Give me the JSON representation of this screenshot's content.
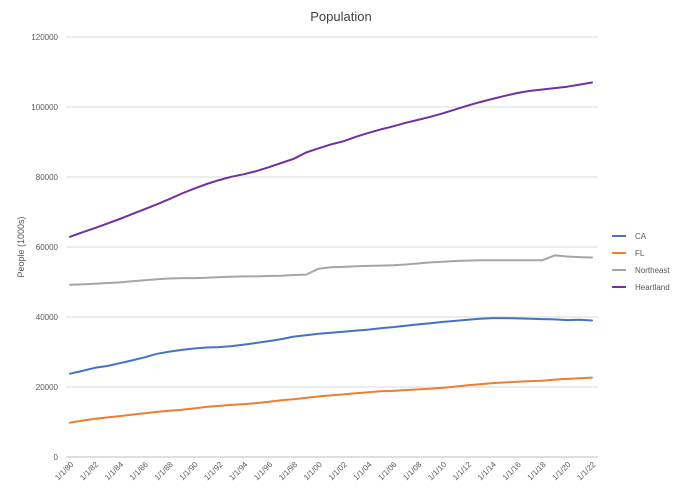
{
  "chart_data": {
    "type": "line",
    "title": "Population",
    "ylabel": "People (1000s)",
    "xlabel": "",
    "ylim": [
      0,
      120000
    ],
    "y_ticks": [
      0,
      20000,
      40000,
      60000,
      80000,
      100000,
      120000
    ],
    "x_tick_labels": [
      "1/1/80",
      "1/1/82",
      "1/1/84",
      "1/1/86",
      "1/1/88",
      "1/1/90",
      "1/1/92",
      "1/1/94",
      "1/1/96",
      "1/1/98",
      "1/1/00",
      "1/1/02",
      "1/1/04",
      "1/1/06",
      "1/1/08",
      "1/1/10",
      "1/1/12",
      "1/1/14",
      "1/1/16",
      "1/1/18",
      "1/1/20",
      "1/1/22"
    ],
    "x": [
      1980,
      1981,
      1982,
      1983,
      1984,
      1985,
      1986,
      1987,
      1988,
      1989,
      1990,
      1991,
      1992,
      1993,
      1994,
      1995,
      1996,
      1997,
      1998,
      1999,
      2000,
      2001,
      2002,
      2003,
      2004,
      2005,
      2006,
      2007,
      2008,
      2009,
      2010,
      2011,
      2012,
      2013,
      2014,
      2015,
      2016,
      2017,
      2018,
      2019,
      2020,
      2021,
      2022
    ],
    "grid": "horizontal",
    "legend": "right",
    "series": [
      {
        "name": "CA",
        "color": "#4472C4",
        "values": [
          23800,
          24600,
          25500,
          26000,
          26800,
          27600,
          28500,
          29500,
          30100,
          30600,
          31000,
          31300,
          31400,
          31700,
          32100,
          32600,
          33100,
          33700,
          34400,
          34800,
          35200,
          35500,
          35800,
          36100,
          36400,
          36800,
          37100,
          37500,
          37900,
          38200,
          38600,
          38900,
          39200,
          39500,
          39700,
          39700,
          39600,
          39500,
          39400,
          39300,
          39100,
          39200,
          39000
        ]
      },
      {
        "name": "FL",
        "color": "#ED7D31",
        "values": [
          9800,
          10400,
          10900,
          11300,
          11700,
          12100,
          12500,
          12900,
          13200,
          13500,
          13900,
          14300,
          14600,
          14900,
          15100,
          15400,
          15800,
          16200,
          16500,
          16900,
          17300,
          17600,
          17900,
          18200,
          18500,
          18800,
          18900,
          19100,
          19300,
          19500,
          19800,
          20100,
          20500,
          20800,
          21100,
          21300,
          21500,
          21700,
          21800,
          22100,
          22300,
          22500,
          22700
        ]
      },
      {
        "name": "Northeast",
        "color": "#A5A5A5",
        "values": [
          49200,
          49300,
          49500,
          49700,
          49900,
          50200,
          50500,
          50800,
          51000,
          51100,
          51100,
          51200,
          51400,
          51500,
          51600,
          51600,
          51700,
          51800,
          52000,
          52100,
          53800,
          54200,
          54300,
          54500,
          54600,
          54700,
          54800,
          55000,
          55300,
          55600,
          55800,
          56000,
          56100,
          56200,
          56200,
          56200,
          56200,
          56200,
          56200,
          57600,
          57300,
          57100,
          57000
        ]
      },
      {
        "name": "Heartland",
        "color": "#7030A0",
        "values": [
          62900,
          64200,
          65400,
          66700,
          68000,
          69400,
          70800,
          72200,
          73700,
          75300,
          76700,
          78000,
          79100,
          80100,
          80800,
          81700,
          82800,
          84000,
          85200,
          87000,
          88200,
          89300,
          90200,
          91500,
          92600,
          93600,
          94500,
          95500,
          96300,
          97200,
          98200,
          99300,
          100400,
          101400,
          102300,
          103200,
          104000,
          104600,
          105000,
          105400,
          105800,
          106400,
          107000
        ]
      }
    ]
  }
}
